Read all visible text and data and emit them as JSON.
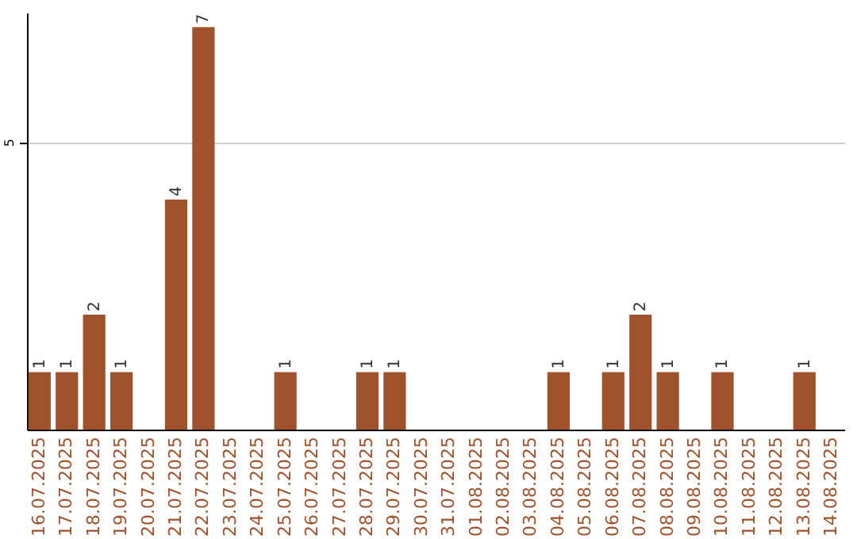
{
  "chart_data": {
    "type": "bar",
    "categories": [
      "16.07.2025",
      "17.07.2025",
      "18.07.2025",
      "19.07.2025",
      "20.07.2025",
      "21.07.2025",
      "22.07.2025",
      "23.07.2025",
      "24.07.2025",
      "25.07.2025",
      "26.07.2025",
      "27.07.2025",
      "28.07.2025",
      "29.07.2025",
      "30.07.2025",
      "31.07.2025",
      "01.08.2025",
      "02.08.2025",
      "03.08.2025",
      "04.08.2025",
      "05.08.2025",
      "06.08.2025",
      "07.08.2025",
      "08.08.2025",
      "09.08.2025",
      "10.08.2025",
      "11.08.2025",
      "12.08.2025",
      "13.08.2025",
      "14.08.2025"
    ],
    "values": [
      1,
      1,
      2,
      1,
      0,
      4,
      7,
      0,
      0,
      1,
      0,
      0,
      1,
      1,
      0,
      0,
      0,
      0,
      0,
      1,
      0,
      1,
      2,
      1,
      0,
      1,
      0,
      0,
      1,
      0
    ],
    "value_labels": [
      "1",
      "1",
      "2",
      "1",
      null,
      "4",
      "7",
      null,
      null,
      "1",
      null,
      null,
      "1",
      "1",
      null,
      null,
      null,
      null,
      null,
      "1",
      null,
      "1",
      "2",
      "1",
      null,
      "1",
      null,
      null,
      "1",
      null
    ],
    "color": "#a0522d",
    "ylim": [
      0,
      7.25
    ],
    "yticks": [
      5
    ],
    "grid": "y"
  }
}
